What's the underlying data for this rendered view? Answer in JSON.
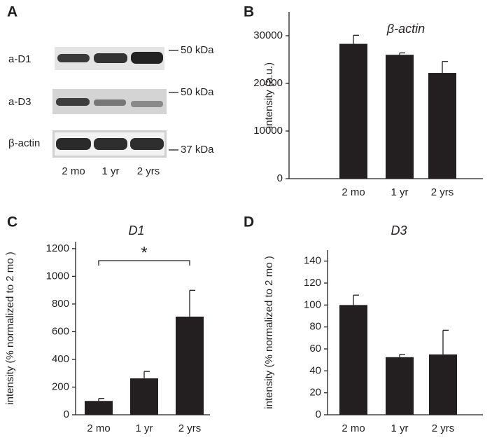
{
  "blot": {
    "panel_label": "A",
    "rows": [
      {
        "label": "a-D1",
        "marker": "50 kDa"
      },
      {
        "label": "a-D3",
        "marker": "50 kDa"
      },
      {
        "label": "β-actin",
        "marker": "37 kDa"
      }
    ],
    "lanes": [
      "2 mo",
      "1 yr",
      "2 yrs"
    ]
  },
  "chart_data": [
    {
      "type": "bar",
      "panel_label": "B",
      "title": "β-actin",
      "y_label": "intensity (a.u.)",
      "categories": [
        "2 mo",
        "1 yr",
        "2 yrs"
      ],
      "values": [
        28300,
        26000,
        22200
      ],
      "errors": [
        1800,
        400,
        2400
      ],
      "color": "#231f20",
      "ylim": [
        0,
        35000
      ],
      "yticks": [
        0,
        10000,
        20000,
        30000
      ]
    },
    {
      "type": "bar",
      "panel_label": "C",
      "title": "D1",
      "y_label": "intensity (% normalized to 2 mo )",
      "categories": [
        "2 mo",
        "1 yr",
        "2 yrs"
      ],
      "values": [
        100,
        263,
        709
      ],
      "errors": [
        18,
        50,
        190
      ],
      "color": "#231f20",
      "ylim": [
        0,
        1250
      ],
      "yticks": [
        0,
        200,
        400,
        600,
        800,
        1000,
        1200
      ],
      "annotation": "*"
    },
    {
      "type": "bar",
      "panel_label": "D",
      "title": "D3",
      "y_label": "intensity (% normalized to 2 mo )",
      "categories": [
        "2 mo",
        "1 yr",
        "2 yrs"
      ],
      "values": [
        100,
        52.5,
        55
      ],
      "errors": [
        9,
        2.5,
        22
      ],
      "color": "#231f20",
      "ylim": [
        0,
        150
      ],
      "yticks": [
        0,
        20,
        40,
        60,
        80,
        100,
        120,
        140
      ]
    }
  ]
}
